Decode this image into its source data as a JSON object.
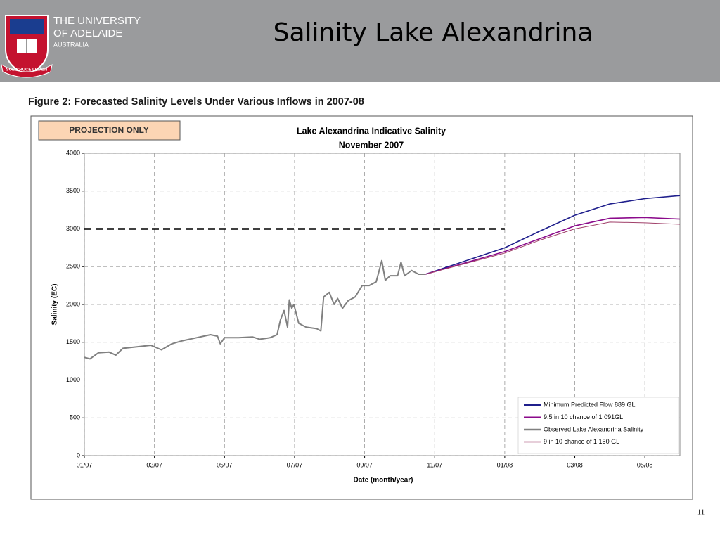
{
  "header": {
    "logo_text": [
      "THE UNIVERSITY",
      "OF ADELAIDE",
      "AUSTRALIA"
    ],
    "motto": "SUB CRUCE LUMEN",
    "title": "Salinity Lake Alexandrina"
  },
  "figure_caption": "Figure 2: Forecasted Salinity Levels Under Various Inflows in 2007-08",
  "page_number": "11",
  "chart_data": {
    "type": "line",
    "title": "Lake Alexandrina Indicative Salinity",
    "subtitle": "November 2007",
    "annotation": "PROJECTION ONLY",
    "x_label": "Date (month/year)",
    "y_label": "Salinity (EC)",
    "xlim": [
      0,
      17
    ],
    "xticks": [
      {
        "value": 0,
        "label": "01/07"
      },
      {
        "value": 2,
        "label": "03/07"
      },
      {
        "value": 4,
        "label": "05/07"
      },
      {
        "value": 6,
        "label": "07/07"
      },
      {
        "value": 8,
        "label": "09/07"
      },
      {
        "value": 10,
        "label": "11/07"
      },
      {
        "value": 12,
        "label": "01/08"
      },
      {
        "value": 14,
        "label": "03/08"
      },
      {
        "value": 16,
        "label": "05/08"
      }
    ],
    "ylim": [
      0,
      4000
    ],
    "yticks": [
      0,
      500,
      1000,
      1500,
      2000,
      2500,
      3000,
      3500,
      4000
    ],
    "grid": true,
    "legend": "lower right",
    "reference_line": {
      "value": 3000,
      "x": [
        0,
        12
      ],
      "color": "#000000"
    },
    "series": [
      {
        "name": "Minimum Predicted Flow  889 GL",
        "color": "#1f1f8c",
        "width": 1.6,
        "x": [
          9.74,
          12,
          13,
          14,
          15,
          16,
          17
        ],
        "values": [
          2400,
          2750,
          2970,
          3180,
          3330,
          3400,
          3440
        ]
      },
      {
        "name": "9.5 in 10 chance of 1 091GL",
        "color": "#8b0a8b",
        "width": 1.6,
        "x": [
          9.74,
          12,
          13,
          14,
          15,
          16,
          17
        ],
        "values": [
          2400,
          2700,
          2870,
          3040,
          3140,
          3150,
          3130
        ]
      },
      {
        "name": "Observed Lake Alexandrina Salinity",
        "color": "#808080",
        "width": 2,
        "x": [
          0,
          0.16,
          0.4,
          0.7,
          0.9,
          1.1,
          1.5,
          1.9,
          2.2,
          2.5,
          2.8,
          3.2,
          3.6,
          3.8,
          3.88,
          4.0,
          4.4,
          4.8,
          5.0,
          5.3,
          5.5,
          5.6,
          5.7,
          5.8,
          5.85,
          5.92,
          5.98,
          6.12,
          6.33,
          6.63,
          6.75,
          6.83,
          6.99,
          7.13,
          7.23,
          7.37,
          7.53,
          7.73,
          7.93,
          8.13,
          8.33,
          8.49,
          8.59,
          8.73,
          8.94,
          9.04,
          9.14,
          9.34,
          9.54,
          9.74
        ],
        "values": [
          1300,
          1280,
          1360,
          1370,
          1330,
          1420,
          1440,
          1460,
          1400,
          1480,
          1520,
          1560,
          1600,
          1580,
          1480,
          1560,
          1560,
          1570,
          1540,
          1560,
          1600,
          1800,
          1920,
          1700,
          2060,
          1950,
          2000,
          1750,
          1700,
          1680,
          1650,
          2100,
          2160,
          2000,
          2080,
          1950,
          2050,
          2100,
          2250,
          2250,
          2300,
          2580,
          2320,
          2380,
          2380,
          2560,
          2380,
          2450,
          2400,
          2400
        ]
      },
      {
        "name": "9 in 10 chance of 1 150 GL",
        "color": "#a0406a",
        "width": 1,
        "x": [
          9.74,
          12,
          13,
          14,
          15,
          16,
          17
        ],
        "values": [
          2400,
          2680,
          2850,
          3000,
          3090,
          3080,
          3060
        ]
      }
    ]
  }
}
